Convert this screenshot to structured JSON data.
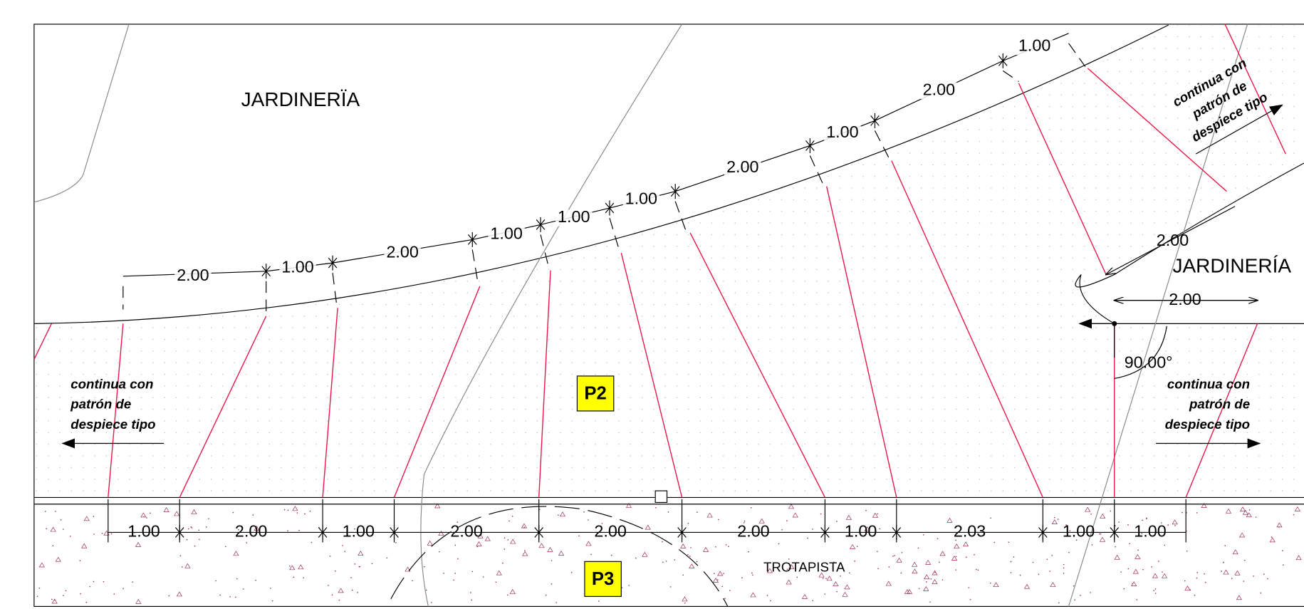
{
  "labels": {
    "garden_left": "JARDINERÏA",
    "garden_right": "JARDINERÍA",
    "zone_p2": "P2",
    "zone_p3": "P3",
    "track": "TROTAPISTA",
    "angle": "90.00°"
  },
  "notes": {
    "left": [
      "continua con",
      "patrón de",
      "despiece tipo"
    ],
    "right": [
      "continua con",
      "patrón de",
      "despiece tipo"
    ],
    "top_right": [
      "continua con",
      "patrón de",
      "despiece tipo"
    ]
  },
  "curved_dimensions": [
    "2.00",
    "1.00",
    "2.00",
    "1.00",
    "1.00",
    "1.00",
    "2.00",
    "1.00",
    "2.00",
    "1.00"
  ],
  "bottom_dimensions": [
    "1.00",
    "2.00",
    "1.00",
    "2.00",
    "2.00",
    "2.00",
    "1.00",
    "2.03",
    "1.00",
    "1.00"
  ],
  "right_dimensions": [
    "2.00",
    "2.00"
  ]
}
